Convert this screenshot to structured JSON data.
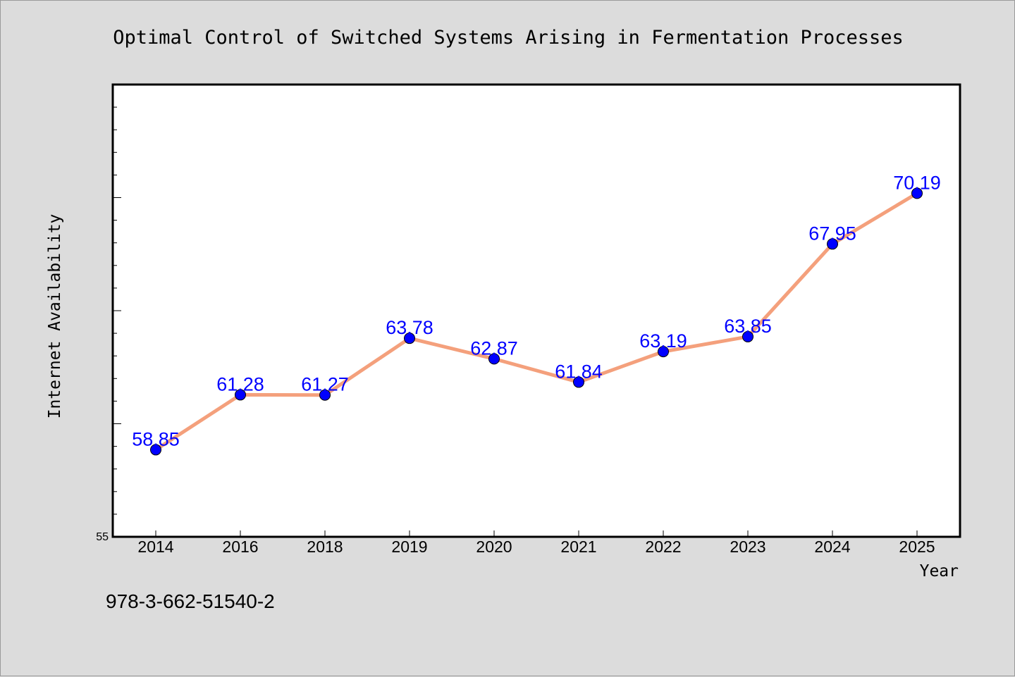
{
  "chart_data": {
    "type": "line",
    "title": "Optimal Control of Switched Systems Arising in Fermentation Processes",
    "xlabel": "Year",
    "ylabel": "Internet Availability",
    "categories": [
      "2014",
      "2016",
      "2018",
      "2019",
      "2020",
      "2021",
      "2022",
      "2023",
      "2024",
      "2025"
    ],
    "values": [
      58.85,
      61.28,
      61.27,
      63.78,
      62.87,
      61.84,
      63.19,
      63.85,
      67.95,
      70.19
    ],
    "data_labels": [
      "58.85",
      "61.28",
      "61.27",
      "63.78",
      "62.87",
      "61.84",
      "63.19",
      "63.85",
      "67.95",
      "70.19"
    ],
    "ylim": [
      55,
      75
    ],
    "y_tick_labels": [
      "55"
    ],
    "y_minor_tick_step": 1,
    "grid": false,
    "legend": "none",
    "colors": {
      "line": "#f4a07c",
      "marker": "#0000ff",
      "data_label": "#0000ff",
      "plot_background": "#ffffff",
      "figure_background": "#dcdcdc"
    }
  },
  "footer": {
    "isbn": "978-3-662-51540-2"
  }
}
